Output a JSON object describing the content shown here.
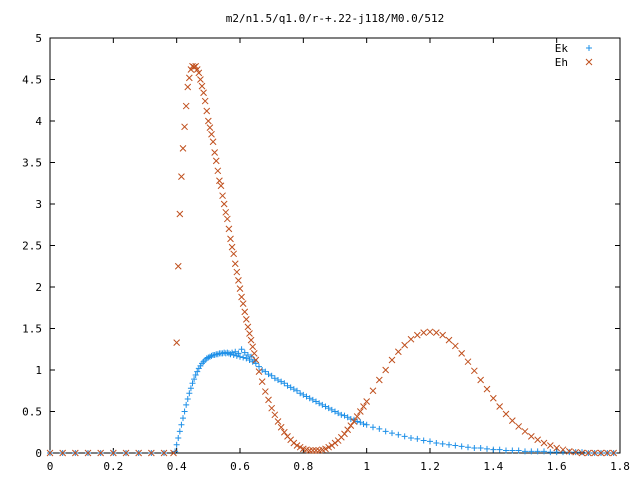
{
  "chart_data": {
    "type": "scatter",
    "title": "m2/n1.5/q1.0/r-+.22-j118/M0.0/512",
    "xlabel": "",
    "ylabel": "",
    "xlim": [
      0,
      1.8
    ],
    "ylim": [
      0,
      5
    ],
    "x_ticks": [
      0,
      0.2,
      0.4,
      0.6,
      0.8,
      1,
      1.2,
      1.4,
      1.6,
      1.8
    ],
    "x_tick_labels": [
      "0",
      "0.2",
      "0.4",
      "0.6",
      "0.8",
      "1",
      "1.2",
      "1.4",
      "1.6",
      "1.8"
    ],
    "y_ticks": [
      0,
      0.5,
      1,
      1.5,
      2,
      2.5,
      3,
      3.5,
      4,
      4.5,
      5
    ],
    "y_tick_labels": [
      "0",
      "0.5",
      "1",
      "1.5",
      "2",
      "2.5",
      "3",
      "3.5",
      "4",
      "4.5",
      "5"
    ],
    "grid": false,
    "legend_position": "top-right",
    "series": [
      {
        "name": "Ek",
        "marker": "plus",
        "color": "#1e90e8",
        "x": [
          0.0,
          0.04,
          0.08,
          0.12,
          0.16,
          0.2,
          0.24,
          0.28,
          0.32,
          0.36,
          0.395,
          0.4,
          0.405,
          0.41,
          0.415,
          0.42,
          0.425,
          0.43,
          0.435,
          0.44,
          0.445,
          0.45,
          0.455,
          0.46,
          0.465,
          0.47,
          0.475,
          0.48,
          0.485,
          0.49,
          0.495,
          0.5,
          0.505,
          0.51,
          0.515,
          0.52,
          0.525,
          0.53,
          0.535,
          0.54,
          0.545,
          0.55,
          0.555,
          0.56,
          0.565,
          0.57,
          0.575,
          0.58,
          0.585,
          0.59,
          0.595,
          0.6,
          0.605,
          0.61,
          0.615,
          0.62,
          0.625,
          0.63,
          0.635,
          0.64,
          0.645,
          0.65,
          0.66,
          0.67,
          0.68,
          0.69,
          0.7,
          0.71,
          0.72,
          0.73,
          0.74,
          0.75,
          0.76,
          0.77,
          0.78,
          0.79,
          0.8,
          0.81,
          0.82,
          0.83,
          0.84,
          0.85,
          0.86,
          0.87,
          0.88,
          0.89,
          0.9,
          0.91,
          0.92,
          0.93,
          0.94,
          0.95,
          0.96,
          0.97,
          0.98,
          0.99,
          1.0,
          1.02,
          1.04,
          1.06,
          1.08,
          1.1,
          1.12,
          1.14,
          1.16,
          1.18,
          1.2,
          1.22,
          1.24,
          1.26,
          1.28,
          1.3,
          1.32,
          1.34,
          1.36,
          1.38,
          1.4,
          1.42,
          1.44,
          1.46,
          1.48,
          1.5,
          1.52,
          1.54,
          1.56,
          1.58,
          1.6,
          1.62,
          1.64,
          1.66,
          1.68,
          1.7,
          1.72,
          1.74,
          1.76,
          1.78
        ],
        "values": [
          0.0,
          0.0,
          0.0,
          0.0,
          0.0,
          0.0,
          0.0,
          0.0,
          0.0,
          0.0,
          0.02,
          0.1,
          0.18,
          0.26,
          0.34,
          0.42,
          0.5,
          0.58,
          0.65,
          0.72,
          0.78,
          0.84,
          0.89,
          0.94,
          0.98,
          1.02,
          1.05,
          1.08,
          1.1,
          1.12,
          1.14,
          1.15,
          1.16,
          1.17,
          1.18,
          1.18,
          1.19,
          1.19,
          1.2,
          1.2,
          1.2,
          1.21,
          1.2,
          1.21,
          1.2,
          1.19,
          1.21,
          1.18,
          1.22,
          1.17,
          1.2,
          1.16,
          1.25,
          1.15,
          1.21,
          1.14,
          1.18,
          1.12,
          1.16,
          1.1,
          1.12,
          1.08,
          1.04,
          1.0,
          0.98,
          0.95,
          0.93,
          0.9,
          0.88,
          0.86,
          0.84,
          0.81,
          0.79,
          0.77,
          0.75,
          0.72,
          0.7,
          0.68,
          0.66,
          0.64,
          0.62,
          0.6,
          0.58,
          0.56,
          0.54,
          0.52,
          0.5,
          0.48,
          0.46,
          0.45,
          0.43,
          0.41,
          0.4,
          0.38,
          0.37,
          0.35,
          0.34,
          0.31,
          0.29,
          0.26,
          0.24,
          0.22,
          0.2,
          0.18,
          0.17,
          0.15,
          0.14,
          0.12,
          0.11,
          0.1,
          0.09,
          0.08,
          0.07,
          0.06,
          0.06,
          0.05,
          0.04,
          0.04,
          0.03,
          0.03,
          0.03,
          0.02,
          0.02,
          0.02,
          0.02,
          0.01,
          0.01,
          0.01,
          0.01,
          0.01,
          0.01,
          0.0,
          0.0,
          0.0,
          0.0,
          0.0
        ]
      },
      {
        "name": "Eh",
        "marker": "cross",
        "color": "#c0501e",
        "x": [
          0.0,
          0.04,
          0.08,
          0.12,
          0.16,
          0.2,
          0.24,
          0.28,
          0.32,
          0.36,
          0.39,
          0.4,
          0.405,
          0.41,
          0.415,
          0.42,
          0.425,
          0.43,
          0.435,
          0.44,
          0.445,
          0.45,
          0.455,
          0.46,
          0.465,
          0.47,
          0.475,
          0.48,
          0.485,
          0.49,
          0.495,
          0.5,
          0.505,
          0.51,
          0.515,
          0.52,
          0.525,
          0.53,
          0.535,
          0.54,
          0.545,
          0.55,
          0.555,
          0.56,
          0.565,
          0.57,
          0.575,
          0.58,
          0.585,
          0.59,
          0.595,
          0.6,
          0.605,
          0.61,
          0.615,
          0.62,
          0.625,
          0.63,
          0.635,
          0.64,
          0.645,
          0.65,
          0.66,
          0.67,
          0.68,
          0.69,
          0.7,
          0.71,
          0.72,
          0.73,
          0.74,
          0.75,
          0.76,
          0.77,
          0.78,
          0.79,
          0.8,
          0.81,
          0.82,
          0.83,
          0.84,
          0.85,
          0.86,
          0.87,
          0.88,
          0.89,
          0.9,
          0.91,
          0.92,
          0.93,
          0.94,
          0.95,
          0.96,
          0.97,
          0.98,
          0.99,
          1.0,
          1.02,
          1.04,
          1.06,
          1.08,
          1.1,
          1.12,
          1.14,
          1.16,
          1.18,
          1.2,
          1.22,
          1.24,
          1.26,
          1.28,
          1.3,
          1.32,
          1.34,
          1.36,
          1.38,
          1.4,
          1.42,
          1.44,
          1.46,
          1.48,
          1.5,
          1.52,
          1.54,
          1.56,
          1.58,
          1.6,
          1.62,
          1.64,
          1.66,
          1.68,
          1.7,
          1.72,
          1.74,
          1.76,
          1.78
        ],
        "values": [
          0.0,
          0.0,
          0.0,
          0.0,
          0.0,
          0.0,
          0.0,
          0.0,
          0.0,
          0.0,
          0.0,
          1.33,
          2.25,
          2.88,
          3.33,
          3.67,
          3.93,
          4.18,
          4.41,
          4.52,
          4.62,
          4.66,
          4.65,
          4.66,
          4.62,
          4.58,
          4.5,
          4.42,
          4.34,
          4.24,
          4.12,
          4.0,
          3.92,
          3.84,
          3.75,
          3.62,
          3.52,
          3.4,
          3.28,
          3.22,
          3.1,
          3.0,
          2.9,
          2.82,
          2.7,
          2.58,
          2.48,
          2.4,
          2.28,
          2.18,
          2.08,
          1.98,
          1.88,
          1.8,
          1.7,
          1.61,
          1.52,
          1.44,
          1.36,
          1.28,
          1.2,
          1.12,
          0.98,
          0.86,
          0.74,
          0.64,
          0.54,
          0.46,
          0.38,
          0.31,
          0.25,
          0.2,
          0.16,
          0.12,
          0.09,
          0.07,
          0.05,
          0.04,
          0.03,
          0.03,
          0.03,
          0.03,
          0.04,
          0.05,
          0.07,
          0.09,
          0.12,
          0.15,
          0.19,
          0.23,
          0.28,
          0.33,
          0.38,
          0.44,
          0.5,
          0.56,
          0.62,
          0.75,
          0.88,
          1.0,
          1.12,
          1.22,
          1.3,
          1.37,
          1.42,
          1.45,
          1.46,
          1.45,
          1.42,
          1.36,
          1.29,
          1.2,
          1.1,
          0.99,
          0.88,
          0.77,
          0.66,
          0.56,
          0.47,
          0.39,
          0.32,
          0.26,
          0.2,
          0.16,
          0.12,
          0.09,
          0.06,
          0.04,
          0.02,
          0.01,
          0.0,
          0.0,
          0.0,
          0.0,
          0.0,
          0.0
        ]
      }
    ]
  }
}
